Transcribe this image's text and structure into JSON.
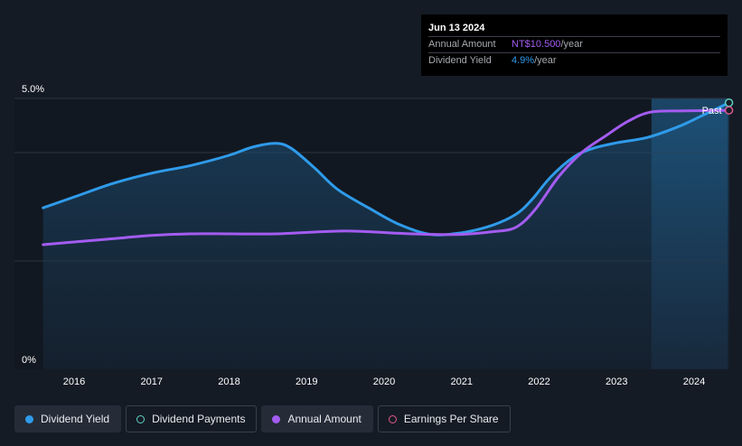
{
  "tooltip": {
    "date": "Jun 13 2024",
    "annual_amount_label": "Annual Amount",
    "annual_amount_value": "NT$10.500",
    "annual_amount_unit": "/year",
    "dividend_yield_label": "Dividend Yield",
    "dividend_yield_value": "4.9%",
    "dividend_yield_unit": "/year"
  },
  "past_label": "Past",
  "legend": [
    {
      "label": "Dividend Yield",
      "marker": "filled",
      "color": "#2f9bea",
      "active": true
    },
    {
      "label": "Dividend Payments",
      "marker": "ring",
      "color": "#5fd3c4",
      "active": false
    },
    {
      "label": "Annual Amount",
      "marker": "filled",
      "color": "#a35cf0",
      "active": true
    },
    {
      "label": "Earnings Per Share",
      "marker": "ring",
      "color": "#e3588c",
      "active": false
    }
  ],
  "chart_data": {
    "type": "line",
    "x_ticks": [
      "2016",
      "2017",
      "2018",
      "2019",
      "2020",
      "2021",
      "2022",
      "2023",
      "2024"
    ],
    "y_ticks": [
      "0%",
      "5.0%"
    ],
    "ylim": [
      0,
      5.0
    ],
    "xlim": [
      2015.6,
      2024.45
    ],
    "past_region_start": 2023.45,
    "series": [
      {
        "name": "Dividend Yield",
        "color": "#2f9bea",
        "area": true,
        "points": [
          [
            2015.6,
            2.98
          ],
          [
            2016.0,
            3.18
          ],
          [
            2016.5,
            3.43
          ],
          [
            2017.0,
            3.62
          ],
          [
            2017.5,
            3.76
          ],
          [
            2018.0,
            3.95
          ],
          [
            2018.3,
            4.1
          ],
          [
            2018.6,
            4.17
          ],
          [
            2018.8,
            4.08
          ],
          [
            2019.1,
            3.72
          ],
          [
            2019.4,
            3.32
          ],
          [
            2019.8,
            2.98
          ],
          [
            2020.2,
            2.67
          ],
          [
            2020.6,
            2.49
          ],
          [
            2021.0,
            2.52
          ],
          [
            2021.4,
            2.66
          ],
          [
            2021.7,
            2.86
          ],
          [
            2021.9,
            3.12
          ],
          [
            2022.15,
            3.55
          ],
          [
            2022.45,
            3.92
          ],
          [
            2022.7,
            4.08
          ],
          [
            2023.0,
            4.18
          ],
          [
            2023.4,
            4.28
          ],
          [
            2023.8,
            4.48
          ],
          [
            2024.1,
            4.68
          ],
          [
            2024.45,
            4.92
          ]
        ]
      },
      {
        "name": "Annual Amount",
        "color": "#a35cf0",
        "area": false,
        "points": [
          [
            2015.6,
            2.3
          ],
          [
            2016.0,
            2.35
          ],
          [
            2016.5,
            2.41
          ],
          [
            2017.0,
            2.47
          ],
          [
            2017.5,
            2.5
          ],
          [
            2018.0,
            2.5
          ],
          [
            2018.6,
            2.5
          ],
          [
            2019.2,
            2.54
          ],
          [
            2019.6,
            2.55
          ],
          [
            2020.2,
            2.51
          ],
          [
            2020.6,
            2.49
          ],
          [
            2021.0,
            2.49
          ],
          [
            2021.4,
            2.54
          ],
          [
            2021.7,
            2.62
          ],
          [
            2021.95,
            2.95
          ],
          [
            2022.25,
            3.55
          ],
          [
            2022.55,
            4.0
          ],
          [
            2022.85,
            4.3
          ],
          [
            2023.15,
            4.58
          ],
          [
            2023.45,
            4.75
          ],
          [
            2023.9,
            4.77
          ],
          [
            2024.45,
            4.78
          ]
        ]
      }
    ]
  }
}
